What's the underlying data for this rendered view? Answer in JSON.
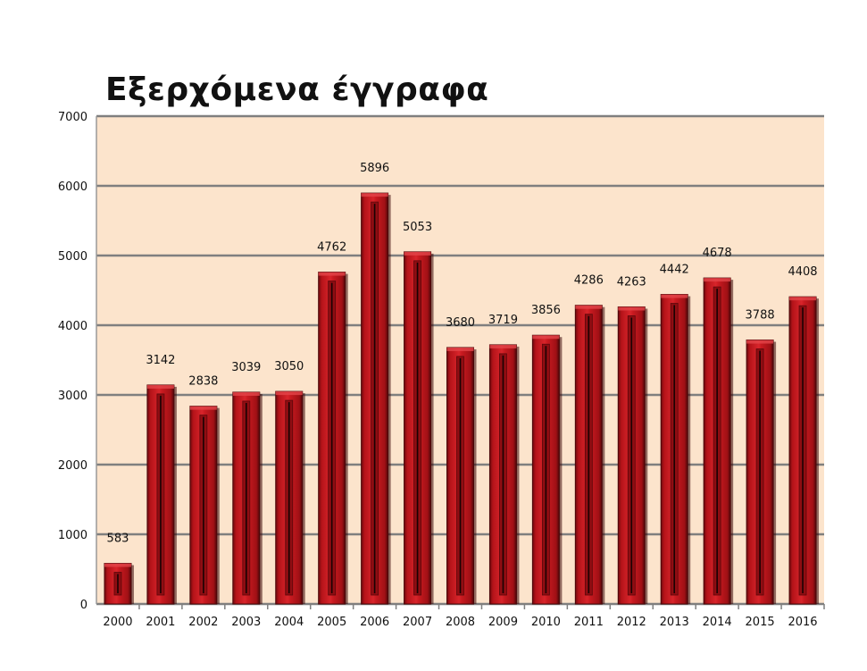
{
  "chart_data": {
    "type": "bar",
    "title": "Εξερχόμενα έγγραφα",
    "xlabel": "",
    "ylabel": "",
    "categories": [
      "2000",
      "2001",
      "2002",
      "2003",
      "2004",
      "2005",
      "2006",
      "2007",
      "2008",
      "2009",
      "2010",
      "2011",
      "2012",
      "2013",
      "2014",
      "2015",
      "2016"
    ],
    "values": [
      583,
      3142,
      2838,
      3039,
      3050,
      4762,
      5896,
      5053,
      3680,
      3719,
      3856,
      4286,
      4263,
      4442,
      4678,
      3788,
      4408
    ],
    "ylim": [
      0,
      7000
    ],
    "yticks": [
      "0",
      "1000",
      "2000",
      "3000",
      "4000",
      "5000",
      "6000",
      "7000"
    ],
    "grid": true,
    "data_labels": true,
    "colors": {
      "plot_background": "#fce4cc",
      "gridline": "#7f7f7f",
      "bar": "#c0151b",
      "bar_dark": "#5a0a0c"
    }
  }
}
